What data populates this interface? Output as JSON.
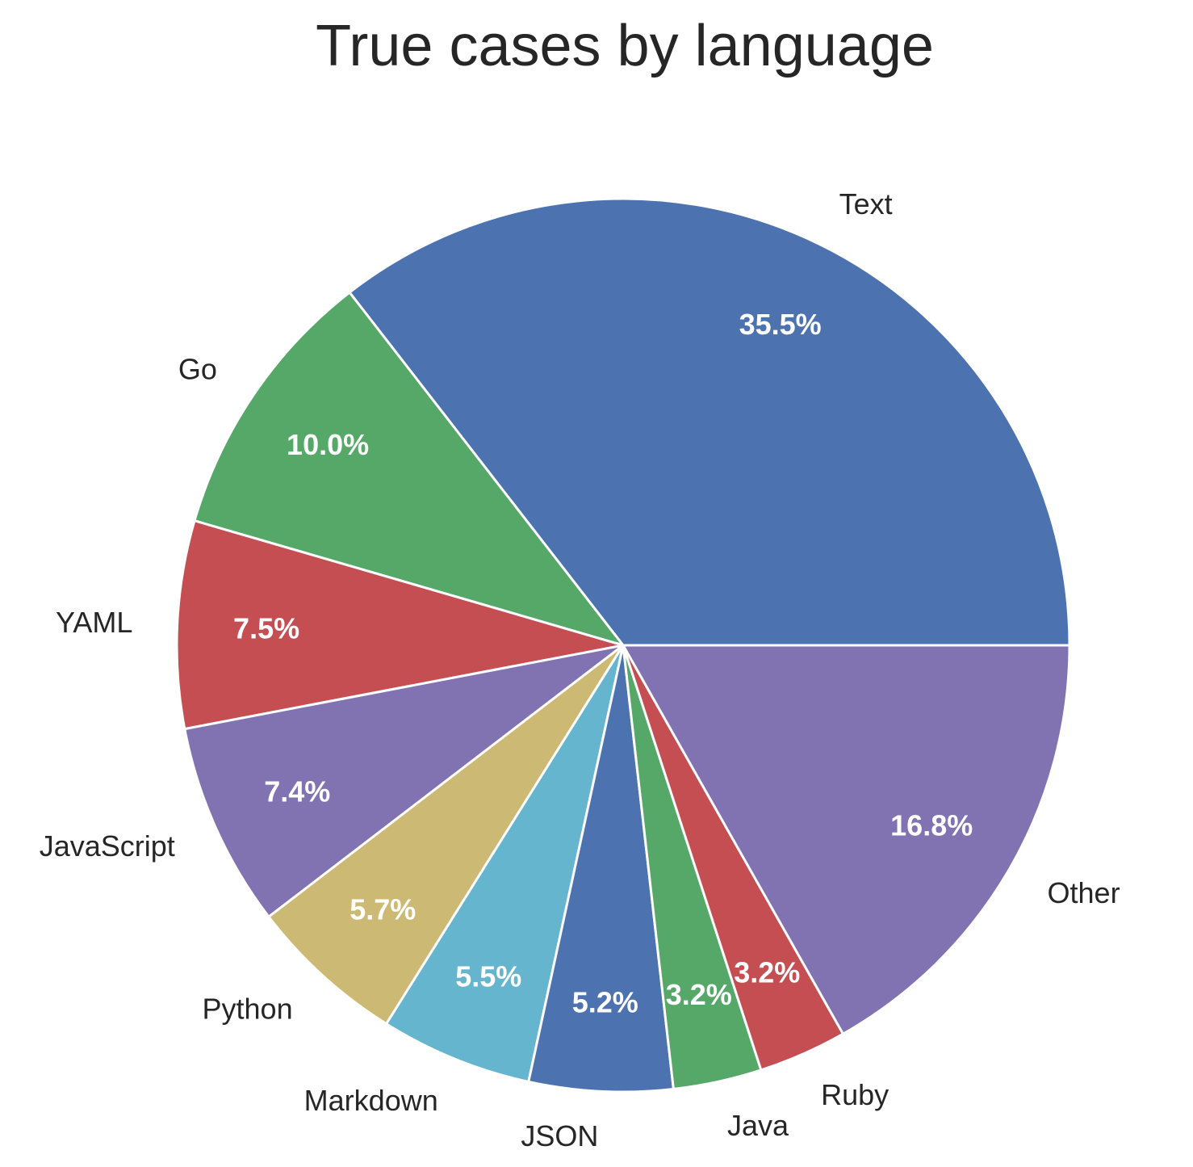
{
  "chart_data": {
    "type": "pie",
    "title": "True cases by language",
    "slices": [
      {
        "label": "Text",
        "value": 35.5,
        "pct_label": "35.5%",
        "color": "#4C72B0"
      },
      {
        "label": "Go",
        "value": 10.0,
        "pct_label": "10.0%",
        "color": "#55A868"
      },
      {
        "label": "YAML",
        "value": 7.5,
        "pct_label": "7.5%",
        "color": "#C44E52"
      },
      {
        "label": "JavaScript",
        "value": 7.4,
        "pct_label": "7.4%",
        "color": "#8172B2"
      },
      {
        "label": "Python",
        "value": 5.7,
        "pct_label": "5.7%",
        "color": "#CCB974"
      },
      {
        "label": "Markdown",
        "value": 5.5,
        "pct_label": "5.5%",
        "color": "#64B5CD"
      },
      {
        "label": "JSON",
        "value": 5.2,
        "pct_label": "5.2%",
        "color": "#4C72B0"
      },
      {
        "label": "Java",
        "value": 3.2,
        "pct_label": "3.2%",
        "color": "#55A868"
      },
      {
        "label": "Ruby",
        "value": 3.2,
        "pct_label": "3.2%",
        "color": "#C44E52"
      },
      {
        "label": "Other",
        "value": 16.8,
        "pct_label": "16.8%",
        "color": "#8172B2"
      }
    ],
    "start_angle_deg": 0,
    "direction": "counterclockwise",
    "wedge_edge_color": "#ffffff",
    "legend": "none"
  }
}
